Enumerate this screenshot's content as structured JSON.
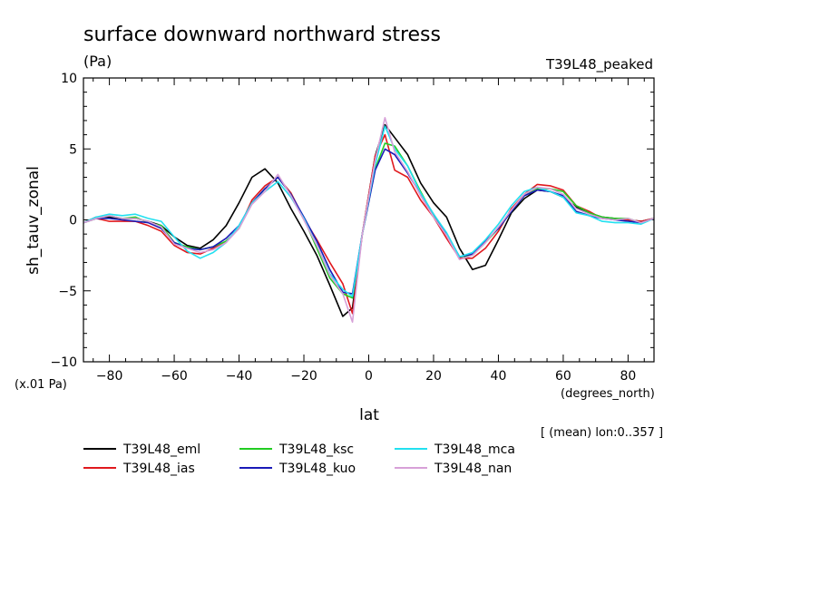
{
  "chart_data": {
    "type": "line",
    "title": "surface downward northward stress",
    "units": "(Pa)",
    "tag": "T39L48_peaked",
    "ylabel": "sh_tauv_zonal",
    "yscale_note": "(x.01 Pa)",
    "xlabel": "lat",
    "xunits": "(degrees_north)",
    "footnote": "[ (mean) lon:0..357 ]",
    "xlim": [
      -88,
      88
    ],
    "ylim": [
      -10,
      10
    ],
    "x_ticks": [
      -80,
      -60,
      -40,
      -20,
      0,
      20,
      40,
      60,
      80
    ],
    "x_tick_labels": [
      "−80",
      "−60",
      "−40",
      "−20",
      "0",
      "20",
      "40",
      "60",
      "80"
    ],
    "y_ticks": [
      -10,
      -5,
      0,
      5,
      10
    ],
    "y_tick_labels": [
      "−10",
      "−5",
      "0",
      "5",
      "10"
    ],
    "grid": false,
    "legend_position": "bottom",
    "x": [
      -88,
      -84,
      -80,
      -76,
      -72,
      -68,
      -64,
      -60,
      -56,
      -52,
      -48,
      -44,
      -40,
      -36,
      -32,
      -28,
      -24,
      -20,
      -16,
      -12,
      -8,
      -5,
      -2,
      2,
      5,
      8,
      12,
      16,
      20,
      24,
      28,
      32,
      36,
      40,
      44,
      48,
      52,
      56,
      60,
      64,
      68,
      72,
      76,
      80,
      84,
      88
    ],
    "series": [
      {
        "name": "T39L48_eml",
        "color": "#000000",
        "values": [
          -0.2,
          0.2,
          0.2,
          0.1,
          0.1,
          -0.1,
          -0.4,
          -1.2,
          -1.8,
          -2.0,
          -1.4,
          -0.4,
          1.2,
          3.0,
          3.6,
          2.6,
          0.8,
          -0.8,
          -2.5,
          -4.6,
          -6.8,
          -6.2,
          -1.0,
          4.5,
          6.7,
          5.8,
          4.6,
          2.6,
          1.2,
          0.2,
          -2.0,
          -3.5,
          -3.2,
          -1.4,
          0.5,
          1.5,
          2.1,
          2.0,
          1.6,
          0.9,
          0.5,
          0.2,
          0.1,
          0.0,
          -0.1,
          0.1
        ]
      },
      {
        "name": "T39L48_ias",
        "color": "#e0191e",
        "values": [
          -0.2,
          0.1,
          -0.1,
          -0.1,
          -0.1,
          -0.4,
          -0.8,
          -1.8,
          -2.3,
          -2.4,
          -2.0,
          -1.5,
          -0.6,
          1.4,
          2.4,
          3.0,
          1.9,
          0.1,
          -1.4,
          -3.0,
          -4.5,
          -6.6,
          -1.0,
          4.5,
          6.0,
          3.5,
          3.0,
          1.4,
          0.2,
          -1.3,
          -2.7,
          -2.7,
          -2.0,
          -0.8,
          0.8,
          1.8,
          2.5,
          2.4,
          2.1,
          1.0,
          0.6,
          0.1,
          0.1,
          0.0,
          -0.1,
          0.1
        ]
      },
      {
        "name": "T39L48_ksc",
        "color": "#22cc22",
        "values": [
          -0.2,
          0.1,
          0.3,
          0.1,
          0.2,
          -0.2,
          -0.4,
          -1.6,
          -1.9,
          -2.1,
          -1.9,
          -1.5,
          -0.6,
          1.2,
          2.2,
          3.0,
          1.8,
          0.1,
          -2.0,
          -4.1,
          -5.2,
          -5.5,
          -1.0,
          3.6,
          5.4,
          5.2,
          3.8,
          2.0,
          0.3,
          -1.0,
          -2.6,
          -2.5,
          -1.6,
          -0.6,
          0.6,
          1.7,
          2.2,
          2.2,
          2.0,
          1.0,
          0.5,
          0.2,
          0.1,
          0.1,
          -0.2,
          0.1
        ]
      },
      {
        "name": "T39L48_kuo",
        "color": "#1a1ab8",
        "values": [
          -0.2,
          0.1,
          0.1,
          0.0,
          -0.1,
          -0.2,
          -0.6,
          -1.6,
          -2.0,
          -2.1,
          -1.9,
          -1.3,
          -0.4,
          1.2,
          2.2,
          3.0,
          1.8,
          0.2,
          -1.5,
          -3.5,
          -5.1,
          -5.2,
          -1.0,
          3.5,
          5.0,
          4.6,
          3.3,
          1.8,
          0.4,
          -1.0,
          -2.6,
          -2.4,
          -1.5,
          -0.6,
          0.6,
          1.7,
          2.1,
          2.0,
          1.7,
          0.6,
          0.3,
          0.1,
          0.0,
          -0.1,
          -0.2,
          0.1
        ]
      },
      {
        "name": "T39L48_mca",
        "color": "#22e0f0",
        "values": [
          -0.2,
          0.2,
          0.4,
          0.3,
          0.4,
          0.1,
          -0.1,
          -1.2,
          -2.2,
          -2.7,
          -2.3,
          -1.6,
          -0.4,
          1.2,
          2.0,
          2.7,
          1.6,
          0.1,
          -1.8,
          -3.8,
          -4.9,
          -5.4,
          -1.0,
          3.9,
          6.6,
          5.0,
          3.8,
          1.9,
          0.4,
          -0.9,
          -2.6,
          -2.3,
          -1.4,
          -0.3,
          1.0,
          2.0,
          2.3,
          2.0,
          1.6,
          0.5,
          0.3,
          -0.1,
          -0.2,
          -0.2,
          -0.3,
          0.1
        ]
      },
      {
        "name": "T39L48_nan",
        "color": "#d7a0d8",
        "values": [
          -0.2,
          0.1,
          0.3,
          0.1,
          0.1,
          -0.1,
          -0.5,
          -1.7,
          -2.0,
          -2.3,
          -2.1,
          -1.6,
          -0.6,
          1.1,
          2.0,
          3.2,
          1.7,
          0.0,
          -1.8,
          -3.9,
          -5.2,
          -7.2,
          -1.0,
          4.2,
          7.2,
          4.8,
          3.4,
          1.7,
          0.2,
          -1.1,
          -2.8,
          -2.5,
          -1.6,
          -0.5,
          0.7,
          1.8,
          2.3,
          2.2,
          1.8,
          0.8,
          0.4,
          0.1,
          0.0,
          0.1,
          -0.2,
          0.1
        ]
      }
    ]
  }
}
